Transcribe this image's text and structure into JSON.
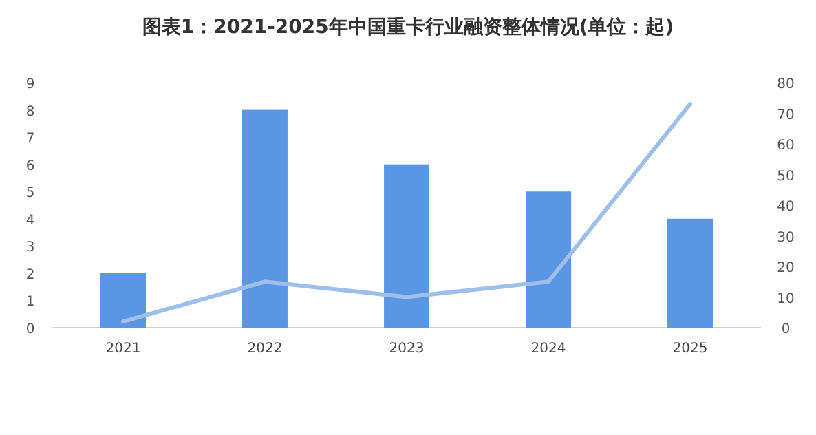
{
  "chart_data": {
    "type": "bar",
    "title": "图表1：2021-2025年中国重卡行业融资整体情况(单位：起)",
    "categories": [
      "2021",
      "2022",
      "2023",
      "2024",
      "2025"
    ],
    "series": [
      {
        "color": "#5a96e3",
        "values": [
          2,
          8,
          6,
          5,
          4
        ]
      },
      {
        "type": "line",
        "axis": "y2",
        "color": "#9dbfe9",
        "values": [
          2,
          15,
          10,
          15,
          73
        ]
      }
    ],
    "ylim": [
      0,
      9
    ],
    "yticks": [
      0,
      1,
      2,
      3,
      4,
      5,
      6,
      7,
      8,
      9
    ],
    "y2lim": [
      0,
      80
    ],
    "y2ticks": [
      0,
      10,
      20,
      30,
      40,
      50,
      60,
      70,
      80
    ],
    "grid": false
  }
}
